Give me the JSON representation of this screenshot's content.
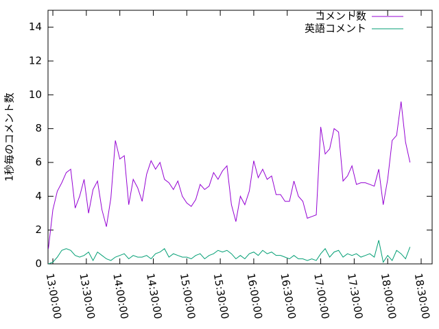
{
  "chart_data": {
    "type": "line",
    "ylabel": "1秒毎のコメント数",
    "x": [
      "12:56:00",
      "13:00:00",
      "13:04:00",
      "13:08:00",
      "13:12:00",
      "13:16:00",
      "13:20:00",
      "13:24:00",
      "13:28:00",
      "13:32:00",
      "13:36:00",
      "13:40:00",
      "13:44:00",
      "13:48:00",
      "13:52:00",
      "13:56:00",
      "14:00:00",
      "14:04:00",
      "14:08:00",
      "14:12:00",
      "14:16:00",
      "14:20:00",
      "14:24:00",
      "14:28:00",
      "14:32:00",
      "14:36:00",
      "14:40:00",
      "14:44:00",
      "14:48:00",
      "14:52:00",
      "14:56:00",
      "15:00:00",
      "15:04:00",
      "15:08:00",
      "15:12:00",
      "15:16:00",
      "15:20:00",
      "15:24:00",
      "15:28:00",
      "15:32:00",
      "15:36:00",
      "15:40:00",
      "15:44:00",
      "15:48:00",
      "15:52:00",
      "15:56:00",
      "16:00:00",
      "16:04:00",
      "16:08:00",
      "16:12:00",
      "16:16:00",
      "16:20:00",
      "16:24:00",
      "16:28:00",
      "16:32:00",
      "16:36:00",
      "16:40:00",
      "16:44:00",
      "16:48:00",
      "16:52:00",
      "16:56:00",
      "17:00:00",
      "17:04:00",
      "17:08:00",
      "17:12:00",
      "17:16:00",
      "17:20:00",
      "17:24:00",
      "17:28:00",
      "17:32:00",
      "17:36:00",
      "17:40:00",
      "17:44:00",
      "17:48:00",
      "17:52:00",
      "17:56:00",
      "18:00:00",
      "18:04:00",
      "18:08:00",
      "18:12:00",
      "18:16:00",
      "18:20:00"
    ],
    "series": [
      {
        "name": "コメント数",
        "color": "#9400d3",
        "values": [
          0.9,
          3.2,
          4.3,
          4.8,
          5.4,
          5.6,
          3.3,
          4.0,
          5.0,
          3.0,
          4.4,
          4.9,
          3.2,
          2.2,
          3.9,
          7.3,
          6.2,
          6.4,
          3.5,
          5.0,
          4.5,
          3.7,
          5.3,
          6.1,
          5.6,
          6.0,
          5.0,
          4.8,
          4.4,
          4.9,
          4.0,
          3.6,
          3.4,
          3.8,
          4.7,
          4.4,
          4.6,
          5.4,
          5.0,
          5.5,
          5.8,
          3.5,
          2.5,
          4.0,
          3.5,
          4.3,
          6.1,
          5.1,
          5.6,
          5.0,
          5.2,
          4.1,
          4.1,
          3.7,
          3.7,
          4.9,
          4.0,
          3.7,
          2.7,
          2.8,
          2.9,
          8.1,
          6.5,
          6.8,
          8.0,
          7.8,
          4.9,
          5.2,
          5.8,
          4.7,
          4.8,
          4.8,
          4.7,
          4.6,
          5.6,
          3.5,
          5.0,
          7.3,
          7.6,
          9.6,
          7.2,
          6.0
        ]
      },
      {
        "name": "英語コメント",
        "color": "#009e73",
        "values": [
          0.0,
          0.1,
          0.4,
          0.8,
          0.9,
          0.8,
          0.5,
          0.4,
          0.5,
          0.7,
          0.2,
          0.7,
          0.5,
          0.3,
          0.2,
          0.4,
          0.5,
          0.6,
          0.3,
          0.5,
          0.4,
          0.4,
          0.5,
          0.3,
          0.6,
          0.7,
          0.9,
          0.4,
          0.6,
          0.5,
          0.4,
          0.4,
          0.3,
          0.5,
          0.6,
          0.3,
          0.5,
          0.6,
          0.8,
          0.7,
          0.8,
          0.6,
          0.3,
          0.5,
          0.3,
          0.6,
          0.7,
          0.5,
          0.8,
          0.6,
          0.7,
          0.5,
          0.5,
          0.4,
          0.3,
          0.5,
          0.3,
          0.3,
          0.2,
          0.3,
          0.2,
          0.6,
          0.9,
          0.4,
          0.7,
          0.8,
          0.4,
          0.6,
          0.5,
          0.6,
          0.4,
          0.5,
          0.6,
          0.4,
          1.4,
          0.1,
          0.5,
          0.2,
          0.8,
          0.6,
          0.3,
          1.0
        ]
      }
    ],
    "xlim": [
      "12:55:40",
      "18:39:50"
    ],
    "xticks": [
      "13:00:00",
      "13:30:00",
      "14:00:00",
      "14:30:00",
      "15:00:00",
      "15:30:00",
      "16:00:00",
      "16:30:00",
      "17:00:00",
      "17:30:00",
      "18:00:00",
      "18:30:00"
    ],
    "ylim": [
      0,
      15
    ],
    "yticks": [
      0,
      2,
      4,
      6,
      8,
      10,
      12,
      14
    ],
    "legend": "top-right"
  }
}
